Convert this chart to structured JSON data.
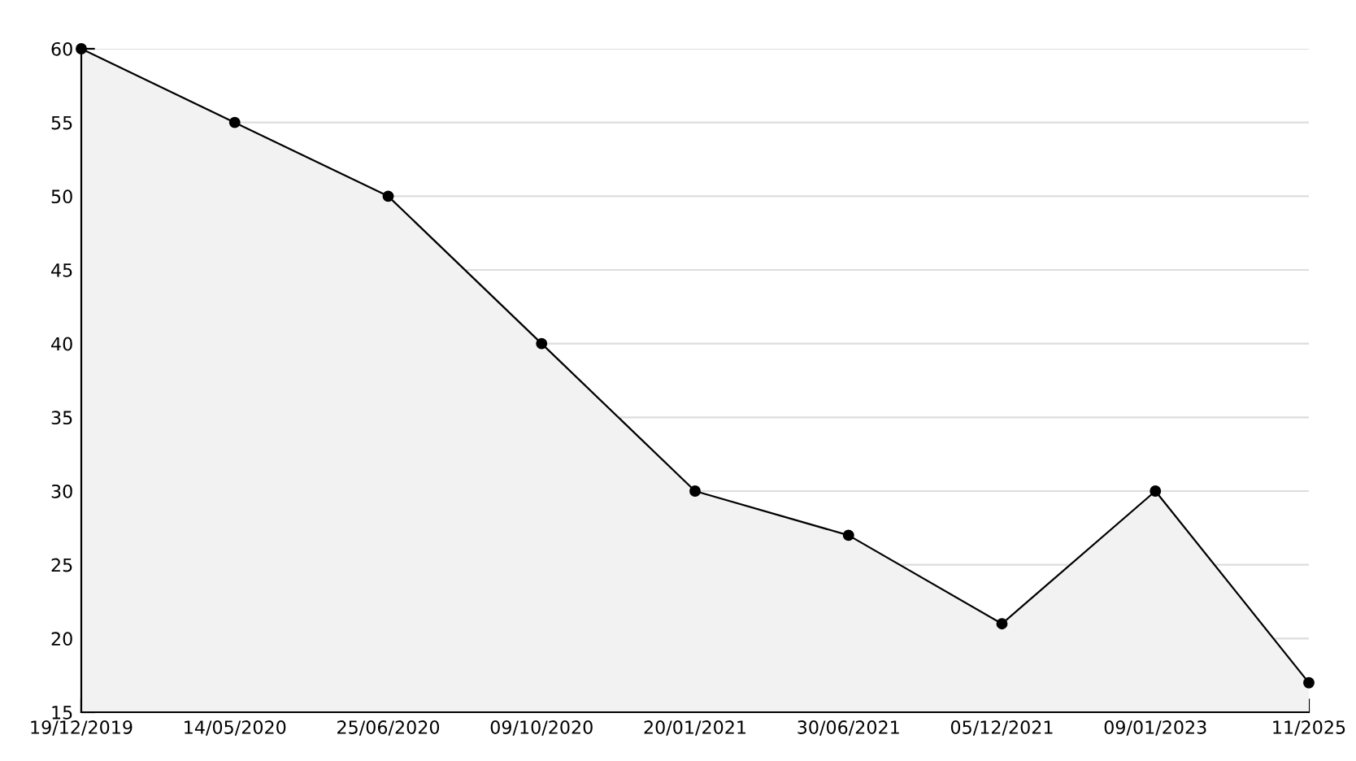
{
  "chart_data": {
    "type": "area",
    "categories": [
      "19/12/2019",
      "14/05/2020",
      "25/06/2020",
      "09/10/2020",
      "20/01/2021",
      "30/06/2021",
      "05/12/2021",
      "09/01/2023",
      "11/2025"
    ],
    "series": [
      {
        "color": "#f2f2f2",
        "values": [
          60,
          55,
          50,
          40,
          30,
          27,
          21,
          30,
          17
        ]
      }
    ],
    "ylim": [
      15,
      60
    ],
    "yticks": [
      15,
      20,
      25,
      30,
      35,
      40,
      45,
      50,
      55,
      60
    ],
    "grid": "y",
    "marker": "circle",
    "line_style": "solid",
    "legend": false
  }
}
